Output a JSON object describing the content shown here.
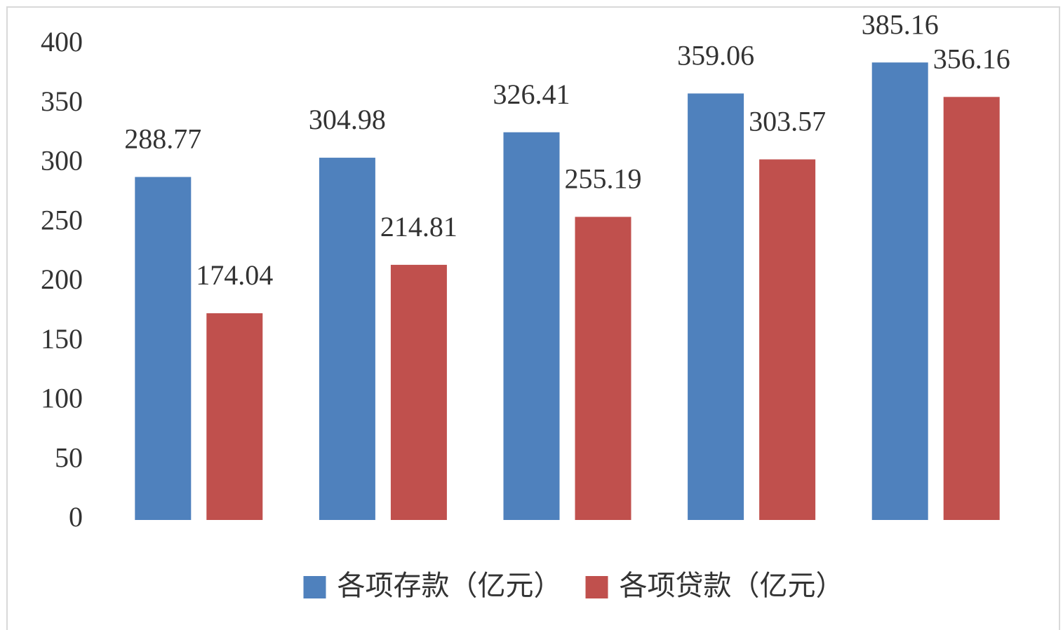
{
  "chart_data": {
    "type": "bar",
    "categories": [
      null,
      null,
      null,
      null,
      null
    ],
    "series": [
      {
        "name": "各项存款（亿元）",
        "color": "#4f81bd",
        "values": [
          288.77,
          304.98,
          326.41,
          359.06,
          385.16
        ]
      },
      {
        "name": "各项贷款（亿元）",
        "color": "#c0504d",
        "values": [
          174.04,
          214.81,
          255.19,
          303.57,
          356.16
        ]
      }
    ],
    "ylim": [
      0,
      400
    ],
    "yticks": [
      0,
      50,
      100,
      150,
      200,
      250,
      300,
      350,
      400
    ],
    "grid": false,
    "legend": "bottom"
  }
}
